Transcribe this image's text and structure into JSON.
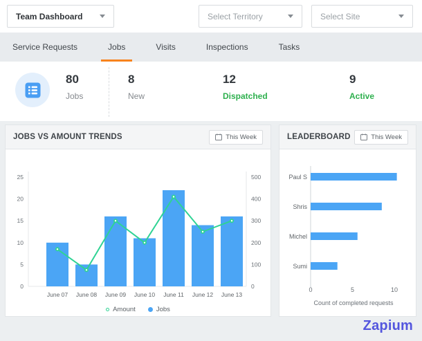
{
  "topbar": {
    "dashboard_select": "Team Dashboard",
    "territory_placeholder": "Select Territory",
    "site_placeholder": "Select Site"
  },
  "tabs": [
    {
      "label": "Service Requests",
      "active": false
    },
    {
      "label": "Jobs",
      "active": true
    },
    {
      "label": "Visits",
      "active": false
    },
    {
      "label": "Inspections",
      "active": false
    },
    {
      "label": "Tasks",
      "active": false
    }
  ],
  "stats": {
    "items": [
      {
        "value": "80",
        "label": "Jobs",
        "highlight": false
      },
      {
        "value": "8",
        "label": "New",
        "highlight": false
      },
      {
        "value": "12",
        "label": "Dispatched",
        "highlight": true
      },
      {
        "value": "9",
        "label": "Active",
        "highlight": true
      }
    ],
    "highlight_color": "#2eb04e",
    "icon": "list-icon",
    "icon_color": "#4a9ef3",
    "icon_bg": "#e3effc",
    "active_tab_color": "#f8831d"
  },
  "panels": {
    "trends": {
      "title": "JOBS VS AMOUNT TRENDS",
      "filter": "This Week"
    },
    "leaderboard": {
      "title": "LEADERBOARD",
      "filter": "This Week"
    }
  },
  "chart_data": [
    {
      "type": "bar",
      "title": "JOBS VS AMOUNT TRENDS",
      "categories": [
        "June 07",
        "June 08",
        "June 09",
        "June 10",
        "June 11",
        "June 12",
        "June 13"
      ],
      "series": [
        {
          "name": "Jobs",
          "kind": "bar",
          "axis": "left",
          "color": "#4ba5f5",
          "values": [
            10,
            5,
            16,
            11,
            22,
            14,
            16
          ]
        },
        {
          "name": "Amount",
          "kind": "line",
          "axis": "right",
          "color": "#2fd394",
          "values": [
            170,
            75,
            300,
            200,
            410,
            250,
            300
          ]
        }
      ],
      "left_axis": {
        "range": [
          0,
          25
        ],
        "ticks": [
          0,
          5,
          10,
          15,
          20,
          25
        ]
      },
      "right_axis": {
        "range": [
          0,
          500
        ],
        "ticks": [
          0,
          100,
          200,
          300,
          400,
          500
        ]
      },
      "legend": [
        {
          "label": "Amount",
          "marker": "ring",
          "color": "#2fd394"
        },
        {
          "label": "Jobs",
          "marker": "dot",
          "color": "#4ba5f5"
        }
      ],
      "grid": false,
      "legend_position": "bottom"
    },
    {
      "type": "bar",
      "orientation": "horizontal",
      "title": "LEADERBOARD",
      "categories": [
        "Paul S",
        "Shris",
        "Michel",
        "Sumi"
      ],
      "values": [
        10.3,
        8.5,
        5.6,
        3.2
      ],
      "color": "#4ba5f5",
      "xlabel": "Count of completed requests",
      "x_ticks": [
        0,
        5,
        10
      ],
      "xlim": [
        0,
        12
      ],
      "grid": false
    }
  ],
  "brand": {
    "name": "Zapium",
    "color": "#5456de"
  }
}
